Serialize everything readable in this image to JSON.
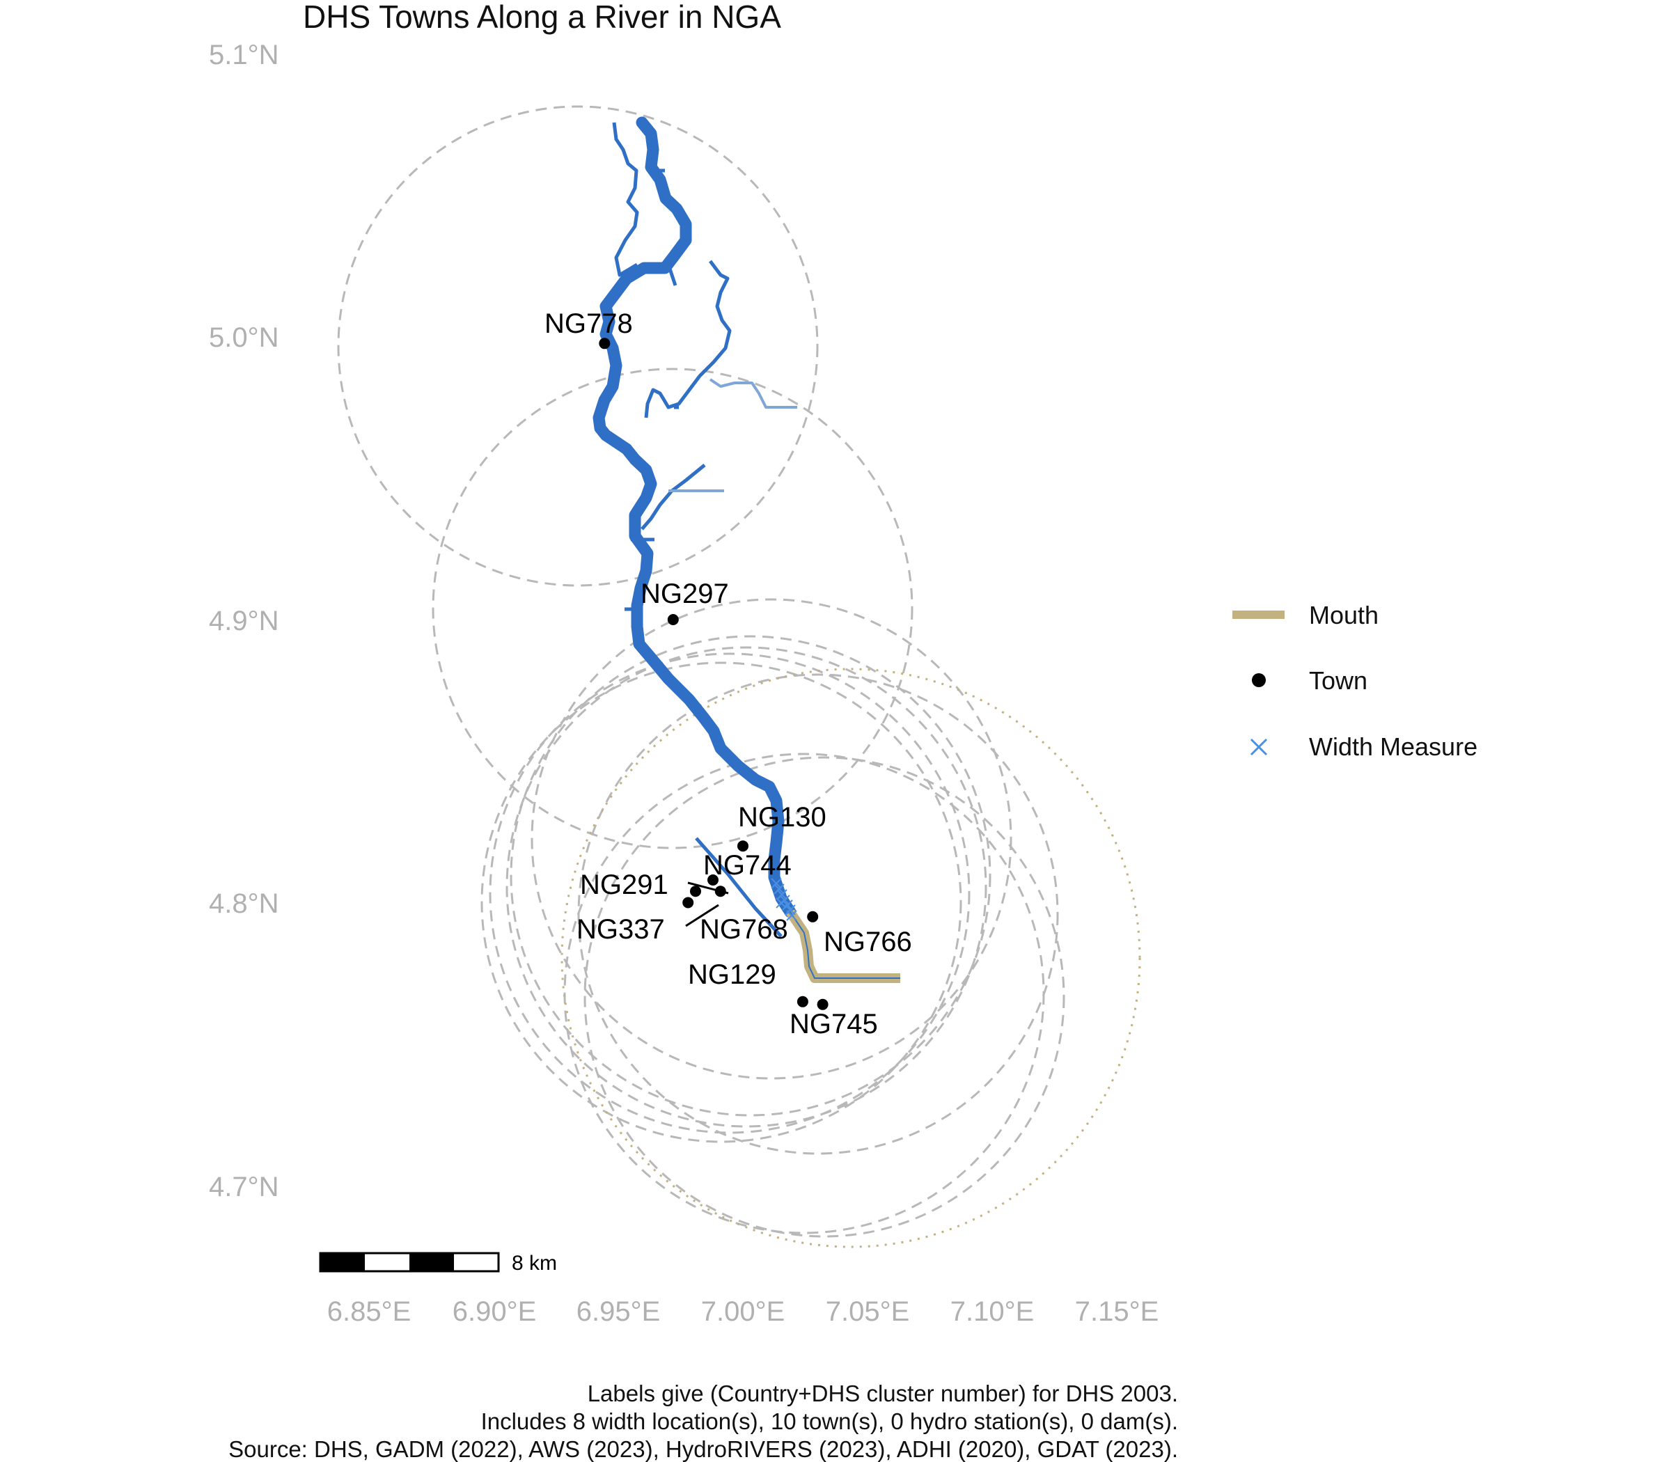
{
  "map": {
    "title": "DHS Towns Along a River in NGA",
    "lat_ticks": [
      "5.1°N",
      "5.0°N",
      "4.9°N",
      "4.8°N",
      "4.7°N"
    ],
    "lon_ticks": [
      "6.85°E",
      "6.90°E",
      "6.95°E",
      "7.00°E",
      "7.05°E",
      "7.10°E",
      "7.15°E"
    ],
    "towns": [
      {
        "id": "NG778",
        "lon": 6.9445,
        "lat": 4.9976
      },
      {
        "id": "NG297",
        "lon": 6.972,
        "lat": 4.9
      },
      {
        "id": "NG130",
        "lon": 7.0,
        "lat": 4.82
      },
      {
        "id": "NG744",
        "lon": 6.988,
        "lat": 4.808
      },
      {
        "id": "NG291",
        "lon": 6.981,
        "lat": 4.804
      },
      {
        "id": "NG337",
        "lon": 6.978,
        "lat": 4.8
      },
      {
        "id": "NG768",
        "lon": 6.991,
        "lat": 4.804
      },
      {
        "id": "NG766",
        "lon": 7.028,
        "lat": 4.795
      },
      {
        "id": "NG129",
        "lon": 7.024,
        "lat": 4.765
      },
      {
        "id": "NG745",
        "lon": 7.032,
        "lat": 4.764
      }
    ],
    "legend": {
      "mouth": "Mouth",
      "town": "Town",
      "width_measure": "Width Measure"
    },
    "colors": {
      "river": "#2f6fc6",
      "tributary": "#7fa6d6",
      "mouth": "#c2b280",
      "buffer": "#b8b8b8",
      "width_marker": "#4a90e2"
    },
    "scale_bar": {
      "label": "8 km"
    }
  },
  "caption": {
    "line1": "Labels give (Country+DHS cluster number) for DHS 2003.",
    "line2": "Includes 8 width location(s), 10 town(s), 0 hydro station(s), 0 dam(s).",
    "line3": "Source: DHS, GADM (2022), AWS (2023), HydroRIVERS (2023), ADHI (2020), GDAT (2023)."
  }
}
